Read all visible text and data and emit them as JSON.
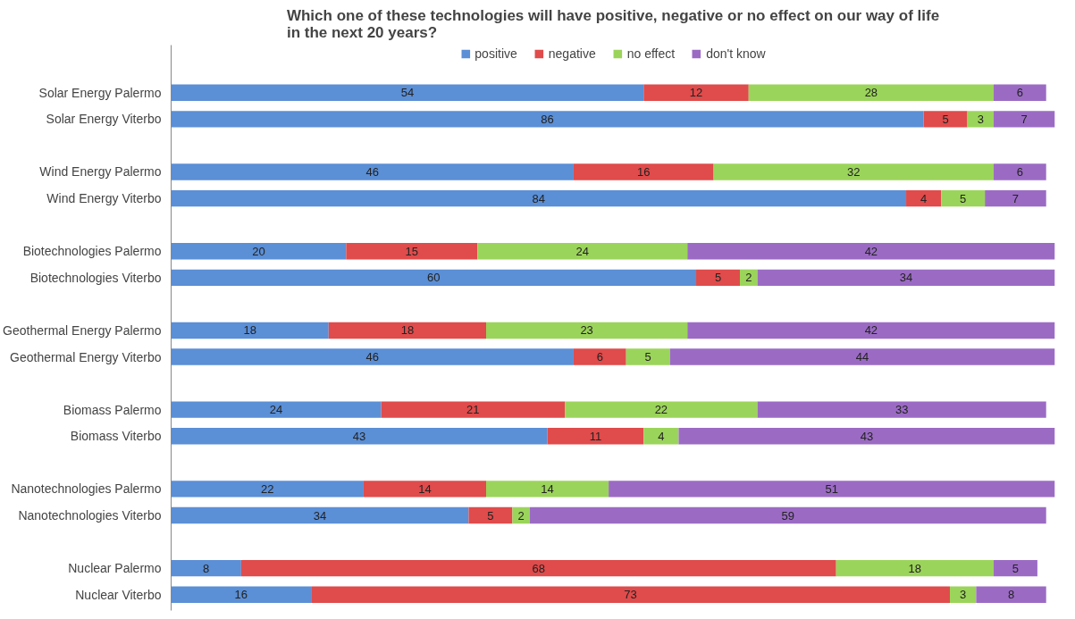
{
  "chart_data": {
    "type": "bar",
    "orientation": "horizontal",
    "stacked": true,
    "title": "Which one of these technologies will have positive, negative or no effect on our way of life\nin the next 20 years?",
    "categories": [
      "Solar Energy Palermo",
      "Solar Energy Viterbo",
      null,
      "Wind Energy Palermo",
      "Wind Energy Viterbo",
      null,
      "Biotechnologies Palermo",
      "Biotechnologies Viterbo",
      null,
      "Geothermal Energy Palermo",
      "Geothermal Energy Viterbo",
      null,
      "Biomass Palermo",
      "Biomass Viterbo",
      null,
      "Nanotechnologies Palermo",
      "Nanotechnologies Viterbo",
      null,
      "Nuclear Palermo",
      "Nuclear Viterbo"
    ],
    "series": [
      {
        "name": "positive",
        "color": "#5b8fd6",
        "values": [
          54,
          86,
          null,
          46,
          84,
          null,
          20,
          60,
          null,
          18,
          46,
          null,
          24,
          43,
          null,
          22,
          34,
          null,
          8,
          16
        ]
      },
      {
        "name": "negative",
        "color": "#e04b4b",
        "values": [
          12,
          5,
          null,
          16,
          4,
          null,
          15,
          5,
          null,
          18,
          6,
          null,
          21,
          11,
          null,
          14,
          5,
          null,
          68,
          73
        ]
      },
      {
        "name": "no effect",
        "color": "#9bd45a",
        "values": [
          28,
          3,
          null,
          32,
          5,
          null,
          24,
          2,
          null,
          23,
          5,
          null,
          22,
          4,
          null,
          14,
          2,
          null,
          18,
          3
        ]
      },
      {
        "name": "don't know",
        "color": "#9b6bc4",
        "values": [
          6,
          7,
          null,
          6,
          7,
          null,
          42,
          34,
          null,
          42,
          44,
          null,
          33,
          43,
          null,
          51,
          59,
          null,
          5,
          8
        ]
      }
    ],
    "data_labels": true,
    "legend": "top",
    "grid": false
  }
}
